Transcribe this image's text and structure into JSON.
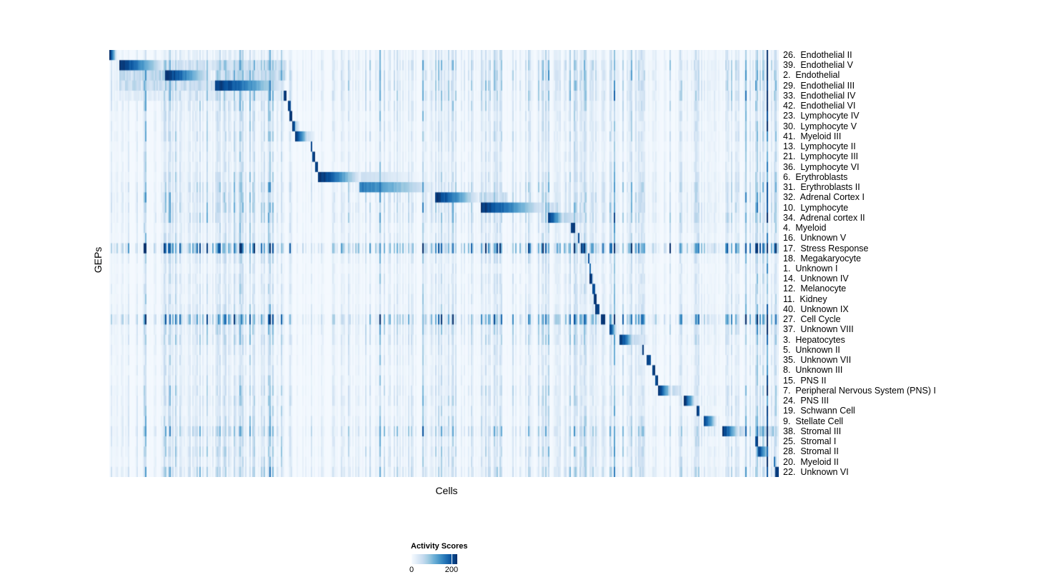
{
  "chart_data": {
    "type": "heatmap",
    "title": "",
    "xlabel": "Cells",
    "ylabel": "GEPs",
    "legend_position": "bottom",
    "grid": false,
    "background": "#F7FBFF",
    "colorbar": {
      "title": "Activity Scores",
      "ticks": [
        0,
        200
      ],
      "min": 0,
      "max": 229,
      "palette": [
        "#F7FBFF",
        "#DEEBF7",
        "#C6DBEF",
        "#9ECAE1",
        "#6BAED6",
        "#4292C6",
        "#2171B5",
        "#08519C",
        "#08306B"
      ]
    },
    "x_axis": {
      "tick_labels": [],
      "note": "individual cells ordered by program"
    },
    "stripe_regions": [
      [
        0.0149,
        0.264,
        1.7
      ],
      [
        0.264,
        0.312,
        0.9
      ],
      [
        0.312,
        0.486,
        1.0
      ],
      [
        0.486,
        0.553,
        1.3
      ],
      [
        0.553,
        0.655,
        1.2
      ],
      [
        0.655,
        0.732,
        1.5
      ],
      [
        0.732,
        0.79,
        1.3
      ],
      [
        0.79,
        0.82,
        1.0
      ],
      [
        0.82,
        0.935,
        1.1
      ],
      [
        0.935,
        0.955,
        1.0
      ],
      [
        0.955,
        1.0,
        1.9
      ]
    ],
    "rows": [
      {
        "label": "26.  Endothelial II",
        "noise": 0.8,
        "blocks": [
          {
            "s": 0.0,
            "e": 0.0107,
            "p": 1.0,
            "fade": "right"
          }
        ]
      },
      {
        "label": "39.  Endothelial V",
        "noise": 1.3,
        "blocks": [
          {
            "s": 0.0149,
            "e": 0.0822,
            "p": 1.0,
            "fade": "right"
          },
          {
            "s": 0.0822,
            "e": 0.157,
            "p": 0.22,
            "fade": "flat"
          },
          {
            "s": 0.157,
            "e": 0.264,
            "p": 0.25,
            "fade": "flat"
          }
        ]
      },
      {
        "label": "2.  Endothelial",
        "noise": 1.3,
        "blocks": [
          {
            "s": 0.0149,
            "e": 0.0822,
            "p": 0.3,
            "fade": "flat"
          },
          {
            "s": 0.0822,
            "e": 0.1515,
            "p": 1.0,
            "fade": "right"
          },
          {
            "s": 0.157,
            "e": 0.264,
            "p": 0.28,
            "fade": "flat"
          }
        ]
      },
      {
        "label": "29.  Endothelial III",
        "noise": 1.3,
        "blocks": [
          {
            "s": 0.0149,
            "e": 0.0822,
            "p": 0.26,
            "fade": "flat"
          },
          {
            "s": 0.0822,
            "e": 0.157,
            "p": 0.26,
            "fade": "flat"
          },
          {
            "s": 0.157,
            "e": 0.2604,
            "p": 1.0,
            "fade": "right"
          }
        ]
      },
      {
        "label": "33.  Endothelial IV",
        "noise": 1.2,
        "blocks": [
          {
            "s": 0.0149,
            "e": 0.2604,
            "p": 0.12,
            "fade": "flat"
          },
          {
            "s": 0.2604,
            "e": 0.2657,
            "p": 1.0,
            "fade": "none"
          }
        ]
      },
      {
        "label": "42.  Endothelial VI",
        "noise": 1.0,
        "blocks": [
          {
            "s": 0.2678,
            "e": 0.2721,
            "p": 1.0,
            "fade": "none"
          }
        ]
      },
      {
        "label": "23.  Lymphocyte IV",
        "noise": 0.8,
        "blocks": [
          {
            "s": 0.27,
            "e": 0.2732,
            "p": 1.0,
            "fade": "none"
          }
        ]
      },
      {
        "label": "30.  Lymphocyte V",
        "noise": 0.8,
        "blocks": [
          {
            "s": 0.2742,
            "e": 0.2774,
            "p": 0.95,
            "fade": "none"
          },
          {
            "s": 0.2774,
            "e": 0.2849,
            "p": 0.35,
            "fade": "right"
          }
        ]
      },
      {
        "label": "41.  Myeloid III",
        "noise": 0.9,
        "blocks": [
          {
            "s": 0.2774,
            "e": 0.2977,
            "p": 1.0,
            "fade": "right"
          },
          {
            "s": 0.2977,
            "e": 0.3084,
            "p": 0.2,
            "fade": "right"
          }
        ]
      },
      {
        "label": "13.  Lymphocyte II",
        "noise": 0.7,
        "blocks": [
          {
            "s": 0.2999,
            "e": 0.3031,
            "p": 1.0,
            "fade": "none"
          }
        ]
      },
      {
        "label": "21.  Lymphocyte III",
        "noise": 0.7,
        "blocks": [
          {
            "s": 0.3031,
            "e": 0.3074,
            "p": 1.0,
            "fade": "none"
          }
        ]
      },
      {
        "label": "36.  Lymphocyte VI",
        "noise": 0.7,
        "blocks": [
          {
            "s": 0.3074,
            "e": 0.3117,
            "p": 1.0,
            "fade": "none"
          }
        ]
      },
      {
        "label": "6.  Erythroblasts",
        "noise": 0.9,
        "blocks": [
          {
            "s": 0.3127,
            "e": 0.3757,
            "p": 1.0,
            "fade": "right"
          },
          {
            "s": 0.3757,
            "e": 0.4664,
            "p": 0.22,
            "fade": "right"
          }
        ]
      },
      {
        "label": "31.  Erythroblasts II",
        "noise": 1.2,
        "blocks": [
          {
            "s": 0.3725,
            "e": 0.4845,
            "p": 0.72,
            "fade": "right"
          }
        ]
      },
      {
        "label": "32.  Adrenal Cortex I",
        "noise": 1.2,
        "blocks": [
          {
            "s": 0.4856,
            "e": 0.5518,
            "p": 1.0,
            "fade": "right"
          },
          {
            "s": 0.5518,
            "e": 0.5945,
            "p": 0.28,
            "fade": "flat"
          }
        ]
      },
      {
        "label": "10.  Lymphocyte",
        "noise": 1.2,
        "blocks": [
          {
            "s": 0.5539,
            "e": 0.651,
            "p": 1.0,
            "fade": "right"
          },
          {
            "s": 0.651,
            "e": 0.672,
            "p": 0.25,
            "fade": "flat"
          }
        ]
      },
      {
        "label": "34.  Adrenal cortex II",
        "noise": 1.2,
        "blocks": [
          {
            "s": 0.6553,
            "e": 0.6798,
            "p": 1.0,
            "fade": "right"
          },
          {
            "s": 0.6798,
            "e": 0.7087,
            "p": 0.3,
            "fade": "right"
          }
        ]
      },
      {
        "label": "4.  Myeloid",
        "noise": 0.8,
        "blocks": [
          {
            "s": 0.6905,
            "e": 0.6959,
            "p": 1.0,
            "fade": "none"
          }
        ]
      },
      {
        "label": "16.  Unknown V",
        "noise": 0.8,
        "blocks": [
          {
            "s": 0.6991,
            "e": 0.7033,
            "p": 1.0,
            "fade": "none"
          }
        ]
      },
      {
        "label": "17.  Stress Response",
        "noise": 3.2,
        "blocks": [
          {
            "s": 0.7044,
            "e": 0.714,
            "p": 1.0,
            "fade": "right"
          }
        ]
      },
      {
        "label": "18.  Megakaryocyte",
        "noise": 0.8,
        "blocks": [
          {
            "s": 0.714,
            "e": 0.7172,
            "p": 0.9,
            "fade": "none"
          }
        ]
      },
      {
        "label": "1.  Unknown I",
        "noise": 0.6,
        "blocks": [
          {
            "s": 0.7172,
            "e": 0.7193,
            "p": 0.85,
            "fade": "none"
          }
        ]
      },
      {
        "label": "14.  Unknown IV",
        "noise": 0.7,
        "blocks": [
          {
            "s": 0.7182,
            "e": 0.7214,
            "p": 1.0,
            "fade": "none"
          }
        ]
      },
      {
        "label": "12.  Melanocyte",
        "noise": 0.7,
        "blocks": [
          {
            "s": 0.7214,
            "e": 0.7247,
            "p": 1.0,
            "fade": "none"
          }
        ]
      },
      {
        "label": "11.  Kidney",
        "noise": 0.7,
        "blocks": [
          {
            "s": 0.7236,
            "e": 0.7268,
            "p": 1.0,
            "fade": "none"
          }
        ]
      },
      {
        "label": "40.  Unknown IX",
        "noise": 0.8,
        "blocks": [
          {
            "s": 0.7257,
            "e": 0.7311,
            "p": 1.0,
            "fade": "none"
          }
        ]
      },
      {
        "label": "27.  Cell Cycle",
        "noise": 2.4,
        "blocks": [
          {
            "s": 0.7332,
            "e": 0.7396,
            "p": 1.0,
            "fade": "none"
          }
        ]
      },
      {
        "label": "37.  Unknown VIII",
        "noise": 1.1,
        "blocks": [
          {
            "s": 0.747,
            "e": 0.7578,
            "p": 1.0,
            "fade": "right"
          }
        ]
      },
      {
        "label": "3.  Hepatocytes",
        "noise": 1.0,
        "blocks": [
          {
            "s": 0.763,
            "e": 0.7843,
            "p": 1.0,
            "fade": "right"
          },
          {
            "s": 0.7843,
            "e": 0.8079,
            "p": 0.25,
            "fade": "right"
          }
        ]
      },
      {
        "label": "5.  Unknown II",
        "noise": 0.7,
        "blocks": [
          {
            "s": 0.7951,
            "e": 0.7993,
            "p": 1.0,
            "fade": "none"
          }
        ]
      },
      {
        "label": "35.  Unknown VII",
        "noise": 0.7,
        "blocks": [
          {
            "s": 0.8025,
            "e": 0.8079,
            "p": 1.0,
            "fade": "none"
          }
        ]
      },
      {
        "label": "8.  Unknown III",
        "noise": 0.7,
        "blocks": [
          {
            "s": 0.8121,
            "e": 0.8154,
            "p": 1.0,
            "fade": "none"
          }
        ]
      },
      {
        "label": "15.  PNS II",
        "noise": 0.7,
        "blocks": [
          {
            "s": 0.8154,
            "e": 0.8196,
            "p": 1.0,
            "fade": "none"
          }
        ]
      },
      {
        "label": "7.  Peripheral Nervous System (PNS) I",
        "noise": 0.9,
        "blocks": [
          {
            "s": 0.8207,
            "e": 0.84,
            "p": 1.0,
            "fade": "right"
          },
          {
            "s": 0.84,
            "e": 0.859,
            "p": 0.3,
            "fade": "right"
          }
        ]
      },
      {
        "label": "24.  PNS III",
        "noise": 0.9,
        "blocks": [
          {
            "s": 0.859,
            "e": 0.8751,
            "p": 1.0,
            "fade": "right"
          }
        ]
      },
      {
        "label": "19.  Schwann Cell",
        "noise": 0.8,
        "blocks": [
          {
            "s": 0.8783,
            "e": 0.8816,
            "p": 1.0,
            "fade": "none"
          }
        ]
      },
      {
        "label": "9.  Stellate Cell",
        "noise": 0.9,
        "blocks": [
          {
            "s": 0.887,
            "e": 0.9072,
            "p": 1.0,
            "fade": "right"
          }
        ]
      },
      {
        "label": "38.  Stromal III",
        "noise": 1.5,
        "blocks": [
          {
            "s": 0.9157,
            "e": 0.9413,
            "p": 1.0,
            "fade": "right"
          },
          {
            "s": 0.9413,
            "e": 0.9541,
            "p": 0.3,
            "fade": "right"
          },
          {
            "s": 0.9701,
            "e": 0.9925,
            "p": 0.35,
            "fade": "flat"
          }
        ]
      },
      {
        "label": "25.  Stromal I",
        "noise": 0.9,
        "blocks": [
          {
            "s": 0.9648,
            "e": 0.9691,
            "p": 1.0,
            "fade": "none"
          }
        ]
      },
      {
        "label": "28.  Stromal II",
        "noise": 1.0,
        "blocks": [
          {
            "s": 0.968,
            "e": 0.9861,
            "p": 1.0,
            "fade": "right"
          }
        ]
      },
      {
        "label": "20.  Myeloid II",
        "noise": 0.9,
        "blocks": [
          {
            "s": 0.9925,
            "e": 0.9957,
            "p": 0.75,
            "fade": "none"
          }
        ]
      },
      {
        "label": "22.  Unknown VI",
        "noise": 1.2,
        "blocks": [
          {
            "s": 0.9947,
            "e": 1.0,
            "p": 1.0,
            "fade": "none"
          }
        ]
      }
    ]
  }
}
